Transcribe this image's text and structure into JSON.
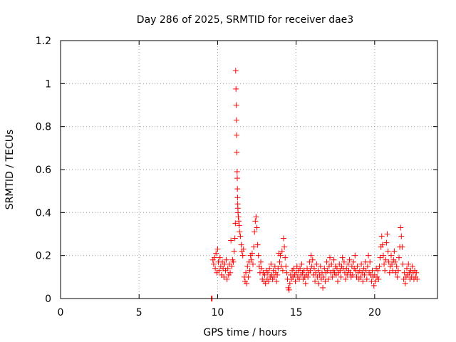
{
  "chart_data": {
    "type": "scatter",
    "title": "Day 286 of 2025, SRMTID for receiver dae3",
    "xlabel": "GPS time / hours",
    "ylabel": "SRMTID / TECUs",
    "xlim": [
      0,
      24
    ],
    "ylim": [
      0,
      1.2
    ],
    "xticks": [
      0,
      5,
      10,
      15,
      20
    ],
    "xtick_labels": [
      "0",
      "5",
      "10",
      "15",
      "20"
    ],
    "yticks": [
      0,
      0.2,
      0.4,
      0.6,
      0.8,
      1.0,
      1.2
    ],
    "ytick_labels": [
      "0",
      "0.2",
      "0.4",
      "0.6",
      "0.8",
      "1",
      "1.2"
    ],
    "grid": true,
    "marker": "+",
    "color": "#ff0000",
    "series": [
      {
        "name": "dae3",
        "points": [
          [
            9.6,
            0.0
          ],
          [
            9.65,
            0.0
          ],
          [
            9.7,
            0.18
          ],
          [
            9.75,
            0.16
          ],
          [
            9.8,
            0.19
          ],
          [
            9.85,
            0.14
          ],
          [
            9.9,
            0.21
          ],
          [
            9.95,
            0.12
          ],
          [
            10.0,
            0.23
          ],
          [
            10.05,
            0.17
          ],
          [
            10.1,
            0.13
          ],
          [
            10.15,
            0.19
          ],
          [
            10.2,
            0.15
          ],
          [
            10.25,
            0.11
          ],
          [
            10.3,
            0.17
          ],
          [
            10.35,
            0.14
          ],
          [
            10.4,
            0.1
          ],
          [
            10.45,
            0.16
          ],
          [
            10.5,
            0.13
          ],
          [
            10.55,
            0.18
          ],
          [
            10.6,
            0.09
          ],
          [
            10.65,
            0.14
          ],
          [
            10.7,
            0.11
          ],
          [
            10.75,
            0.16
          ],
          [
            10.8,
            0.12
          ],
          [
            10.85,
            0.27
          ],
          [
            10.9,
            0.15
          ],
          [
            10.95,
            0.18
          ],
          [
            11.0,
            0.17
          ],
          [
            11.05,
            0.22
          ],
          [
            11.1,
            0.28
          ],
          [
            11.13,
            0.35
          ],
          [
            11.15,
            1.06
          ],
          [
            11.17,
            0.975
          ],
          [
            11.19,
            0.9
          ],
          [
            11.2,
            0.83
          ],
          [
            11.21,
            0.76
          ],
          [
            11.22,
            0.68
          ],
          [
            11.24,
            0.59
          ],
          [
            11.25,
            0.56
          ],
          [
            11.26,
            0.51
          ],
          [
            11.27,
            0.47
          ],
          [
            11.28,
            0.44
          ],
          [
            11.29,
            0.42
          ],
          [
            11.3,
            0.4
          ],
          [
            11.32,
            0.38
          ],
          [
            11.35,
            0.36
          ],
          [
            11.38,
            0.34
          ],
          [
            11.4,
            0.31
          ],
          [
            11.45,
            0.29
          ],
          [
            11.5,
            0.25
          ],
          [
            11.55,
            0.22
          ],
          [
            11.6,
            0.2
          ],
          [
            11.65,
            0.23
          ],
          [
            11.7,
            0.1
          ],
          [
            11.75,
            0.08
          ],
          [
            11.8,
            0.12
          ],
          [
            11.85,
            0.07
          ],
          [
            11.9,
            0.15
          ],
          [
            11.95,
            0.1
          ],
          [
            12.0,
            0.17
          ],
          [
            12.05,
            0.13
          ],
          [
            12.1,
            0.2
          ],
          [
            12.15,
            0.18
          ],
          [
            12.2,
            0.21
          ],
          [
            12.25,
            0.16
          ],
          [
            12.3,
            0.24
          ],
          [
            12.35,
            0.31
          ],
          [
            12.4,
            0.36
          ],
          [
            12.45,
            0.38
          ],
          [
            12.5,
            0.33
          ],
          [
            12.55,
            0.25
          ],
          [
            12.6,
            0.2
          ],
          [
            12.65,
            0.15
          ],
          [
            12.7,
            0.12
          ],
          [
            12.75,
            0.17
          ],
          [
            12.8,
            0.14
          ],
          [
            12.85,
            0.09
          ],
          [
            12.9,
            0.12
          ],
          [
            12.95,
            0.08
          ],
          [
            13.0,
            0.11
          ],
          [
            13.05,
            0.07
          ],
          [
            13.1,
            0.13
          ],
          [
            13.15,
            0.09
          ],
          [
            13.2,
            0.12
          ],
          [
            13.25,
            0.08
          ],
          [
            13.3,
            0.14
          ],
          [
            13.35,
            0.1
          ],
          [
            13.4,
            0.16
          ],
          [
            13.45,
            0.11
          ],
          [
            13.5,
            0.09
          ],
          [
            13.55,
            0.13
          ],
          [
            13.6,
            0.1
          ],
          [
            13.65,
            0.15
          ],
          [
            13.7,
            0.12
          ],
          [
            13.75,
            0.08
          ],
          [
            13.8,
            0.11
          ],
          [
            13.85,
            0.14
          ],
          [
            13.9,
            0.21
          ],
          [
            13.95,
            0.17
          ],
          [
            14.0,
            0.2
          ],
          [
            14.05,
            0.15
          ],
          [
            14.1,
            0.22
          ],
          [
            14.15,
            0.13
          ],
          [
            14.2,
            0.28
          ],
          [
            14.25,
            0.24
          ],
          [
            14.3,
            0.19
          ],
          [
            14.35,
            0.15
          ],
          [
            14.4,
            0.12
          ],
          [
            14.45,
            0.09
          ],
          [
            14.5,
            0.05
          ],
          [
            14.55,
            0.04
          ],
          [
            14.6,
            0.07
          ],
          [
            14.65,
            0.11
          ],
          [
            14.7,
            0.09
          ],
          [
            14.75,
            0.13
          ],
          [
            14.8,
            0.1
          ],
          [
            14.85,
            0.14
          ],
          [
            14.9,
            0.11
          ],
          [
            14.95,
            0.08
          ],
          [
            15.0,
            0.12
          ],
          [
            15.05,
            0.15
          ],
          [
            15.1,
            0.1
          ],
          [
            15.15,
            0.13
          ],
          [
            15.2,
            0.09
          ],
          [
            15.25,
            0.14
          ],
          [
            15.3,
            0.11
          ],
          [
            15.35,
            0.16
          ],
          [
            15.4,
            0.12
          ],
          [
            15.45,
            0.09
          ],
          [
            15.5,
            0.13
          ],
          [
            15.55,
            0.1
          ],
          [
            15.6,
            0.07
          ],
          [
            15.65,
            0.11
          ],
          [
            15.7,
            0.14
          ],
          [
            15.75,
            0.1
          ],
          [
            15.8,
            0.12
          ],
          [
            15.85,
            0.17
          ],
          [
            15.9,
            0.13
          ],
          [
            15.95,
            0.2
          ],
          [
            16.0,
            0.15
          ],
          [
            16.05,
            0.18
          ],
          [
            16.1,
            0.11
          ],
          [
            16.15,
            0.14
          ],
          [
            16.2,
            0.08
          ],
          [
            16.25,
            0.12
          ],
          [
            16.3,
            0.16
          ],
          [
            16.35,
            0.1
          ],
          [
            16.4,
            0.13
          ],
          [
            16.45,
            0.07
          ],
          [
            16.5,
            0.11
          ],
          [
            16.55,
            0.15
          ],
          [
            16.6,
            0.09
          ],
          [
            16.65,
            0.12
          ],
          [
            16.7,
            0.05
          ],
          [
            16.75,
            0.1
          ],
          [
            16.8,
            0.14
          ],
          [
            16.85,
            0.08
          ],
          [
            16.9,
            0.12
          ],
          [
            16.95,
            0.17
          ],
          [
            17.0,
            0.13
          ],
          [
            17.05,
            0.09
          ],
          [
            17.1,
            0.15
          ],
          [
            17.15,
            0.19
          ],
          [
            17.2,
            0.12
          ],
          [
            17.25,
            0.16
          ],
          [
            17.3,
            0.1
          ],
          [
            17.35,
            0.13
          ],
          [
            17.4,
            0.18
          ],
          [
            17.45,
            0.12
          ],
          [
            17.5,
            0.15
          ],
          [
            17.55,
            0.11
          ],
          [
            17.6,
            0.14
          ],
          [
            17.65,
            0.08
          ],
          [
            17.7,
            0.12
          ],
          [
            17.75,
            0.16
          ],
          [
            17.8,
            0.13
          ],
          [
            17.85,
            0.1
          ],
          [
            17.9,
            0.15
          ],
          [
            17.95,
            0.19
          ],
          [
            18.0,
            0.14
          ],
          [
            18.05,
            0.17
          ],
          [
            18.1,
            0.12
          ],
          [
            18.15,
            0.09
          ],
          [
            18.2,
            0.14
          ],
          [
            18.25,
            0.11
          ],
          [
            18.3,
            0.16
          ],
          [
            18.35,
            0.13
          ],
          [
            18.4,
            0.18
          ],
          [
            18.45,
            0.12
          ],
          [
            18.5,
            0.1
          ],
          [
            18.55,
            0.15
          ],
          [
            18.6,
            0.11
          ],
          [
            18.65,
            0.17
          ],
          [
            18.7,
            0.14
          ],
          [
            18.75,
            0.2
          ],
          [
            18.8,
            0.13
          ],
          [
            18.85,
            0.1
          ],
          [
            18.9,
            0.15
          ],
          [
            18.95,
            0.12
          ],
          [
            19.0,
            0.09
          ],
          [
            19.05,
            0.13
          ],
          [
            19.1,
            0.1
          ],
          [
            19.15,
            0.16
          ],
          [
            19.2,
            0.12
          ],
          [
            19.25,
            0.08
          ],
          [
            19.3,
            0.14
          ],
          [
            19.35,
            0.11
          ],
          [
            19.4,
            0.17
          ],
          [
            19.45,
            0.13
          ],
          [
            19.5,
            0.09
          ],
          [
            19.55,
            0.15
          ],
          [
            19.6,
            0.2
          ],
          [
            19.65,
            0.12
          ],
          [
            19.7,
            0.17
          ],
          [
            19.75,
            0.11
          ],
          [
            19.8,
            0.08
          ],
          [
            19.85,
            0.13
          ],
          [
            19.9,
            0.1
          ],
          [
            19.95,
            0.06
          ],
          [
            20.0,
            0.11
          ],
          [
            20.05,
            0.08
          ],
          [
            20.1,
            0.14
          ],
          [
            20.15,
            0.1
          ],
          [
            20.2,
            0.13
          ],
          [
            20.25,
            0.09
          ],
          [
            20.3,
            0.15
          ],
          [
            20.35,
            0.19
          ],
          [
            20.4,
            0.24
          ],
          [
            20.45,
            0.29
          ],
          [
            20.5,
            0.25
          ],
          [
            20.55,
            0.2
          ],
          [
            20.6,
            0.16
          ],
          [
            20.65,
            0.13
          ],
          [
            20.7,
            0.18
          ],
          [
            20.75,
            0.26
          ],
          [
            20.8,
            0.3
          ],
          [
            20.85,
            0.22
          ],
          [
            20.9,
            0.17
          ],
          [
            20.95,
            0.12
          ],
          [
            21.0,
            0.15
          ],
          [
            21.05,
            0.2
          ],
          [
            21.1,
            0.16
          ],
          [
            21.15,
            0.13
          ],
          [
            21.2,
            0.18
          ],
          [
            21.25,
            0.22
          ],
          [
            21.3,
            0.17
          ],
          [
            21.35,
            0.12
          ],
          [
            21.4,
            0.15
          ],
          [
            21.45,
            0.1
          ],
          [
            21.5,
            0.13
          ],
          [
            21.55,
            0.19
          ],
          [
            21.6,
            0.24
          ],
          [
            21.65,
            0.33
          ],
          [
            21.7,
            0.29
          ],
          [
            21.75,
            0.24
          ],
          [
            21.8,
            0.16
          ],
          [
            21.85,
            0.09
          ],
          [
            21.9,
            0.12
          ],
          [
            21.95,
            0.07
          ],
          [
            22.0,
            0.1
          ],
          [
            22.05,
            0.14
          ],
          [
            22.1,
            0.11
          ],
          [
            22.15,
            0.16
          ],
          [
            22.2,
            0.12
          ],
          [
            22.25,
            0.09
          ],
          [
            22.3,
            0.13
          ],
          [
            22.35,
            0.1
          ],
          [
            22.4,
            0.15
          ],
          [
            22.45,
            0.12
          ],
          [
            22.5,
            0.09
          ],
          [
            22.55,
            0.13
          ],
          [
            22.6,
            0.1
          ],
          [
            22.65,
            0.12
          ],
          [
            22.7,
            0.09
          ]
        ]
      }
    ]
  }
}
